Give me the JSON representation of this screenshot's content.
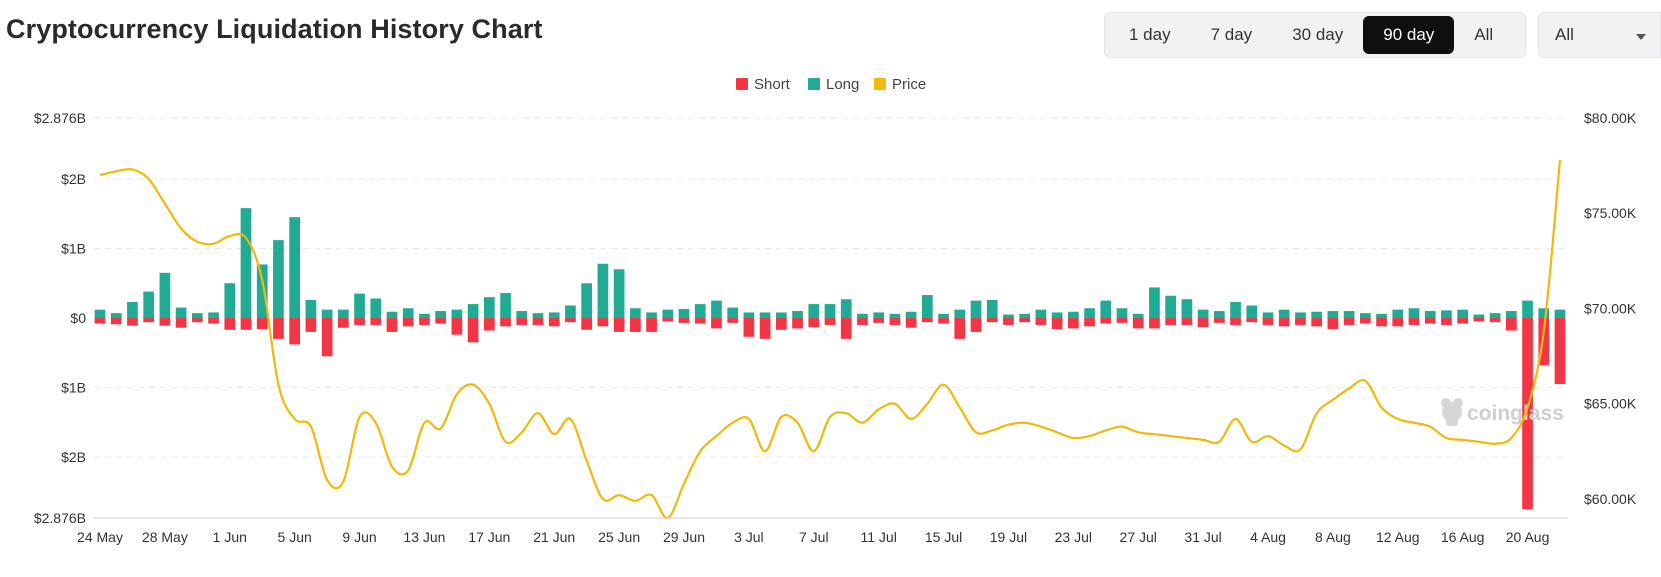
{
  "header": {
    "title": "Cryptocurrency Liquidation History Chart",
    "ranges": [
      "1 day",
      "7 day",
      "30 day",
      "90 day",
      "All"
    ],
    "active_range": "90 day",
    "filter_value": "All"
  },
  "watermark": "coinglass",
  "colors": {
    "short": "#f23645",
    "long": "#22ab94",
    "price": "#f0b90b",
    "grid": "#e9e9e9"
  },
  "chart_data": {
    "type": "bar",
    "legend": [
      "Short",
      "Long",
      "Price"
    ],
    "legend_position": "top-center",
    "grid": true,
    "y_left": {
      "range": [
        -2.876,
        2.876
      ],
      "unit": "B",
      "ticks": [
        {
          "value": 2.876,
          "label": "$2.876B"
        },
        {
          "value": 2,
          "label": "$2B"
        },
        {
          "value": 1,
          "label": "$1B"
        },
        {
          "value": 0,
          "label": "$0"
        },
        {
          "value": -1,
          "label": "$1B"
        },
        {
          "value": -2,
          "label": "$2B"
        },
        {
          "value": -2.876,
          "label": "$2.876B"
        }
      ]
    },
    "y_right": {
      "range": [
        59000,
        80000
      ],
      "ticks": [
        {
          "value": 80000,
          "label": "$80.00K"
        },
        {
          "value": 75000,
          "label": "$75.00K"
        },
        {
          "value": 70000,
          "label": "$70.00K"
        },
        {
          "value": 65000,
          "label": "$65.00K"
        },
        {
          "value": 60000,
          "label": "$60.00K"
        }
      ]
    },
    "x_tick_labels": [
      {
        "index": 0,
        "label": "24 May"
      },
      {
        "index": 4,
        "label": "28 May"
      },
      {
        "index": 8,
        "label": "1 Jun"
      },
      {
        "index": 12,
        "label": "5 Jun"
      },
      {
        "index": 16,
        "label": "9 Jun"
      },
      {
        "index": 20,
        "label": "13 Jun"
      },
      {
        "index": 24,
        "label": "17 Jun"
      },
      {
        "index": 28,
        "label": "21 Jun"
      },
      {
        "index": 32,
        "label": "25 Jun"
      },
      {
        "index": 36,
        "label": "29 Jun"
      },
      {
        "index": 40,
        "label": "3 Jul"
      },
      {
        "index": 44,
        "label": "7 Jul"
      },
      {
        "index": 48,
        "label": "11 Jul"
      },
      {
        "index": 52,
        "label": "15 Jul"
      },
      {
        "index": 56,
        "label": "19 Jul"
      },
      {
        "index": 60,
        "label": "23 Jul"
      },
      {
        "index": 64,
        "label": "27 Jul"
      },
      {
        "index": 68,
        "label": "31 Jul"
      },
      {
        "index": 72,
        "label": "4 Aug"
      },
      {
        "index": 76,
        "label": "8 Aug"
      },
      {
        "index": 80,
        "label": "12 Aug"
      },
      {
        "index": 84,
        "label": "16 Aug"
      },
      {
        "index": 88,
        "label": "20 Aug"
      }
    ],
    "series": [
      {
        "name": "Long",
        "unit": "B",
        "values": [
          0.12,
          0.07,
          0.23,
          0.38,
          0.65,
          0.15,
          0.07,
          0.08,
          0.5,
          1.58,
          0.77,
          1.12,
          1.45,
          0.26,
          0.12,
          0.12,
          0.35,
          0.28,
          0.09,
          0.14,
          0.06,
          0.1,
          0.12,
          0.2,
          0.3,
          0.36,
          0.1,
          0.07,
          0.08,
          0.18,
          0.5,
          0.78,
          0.7,
          0.14,
          0.08,
          0.12,
          0.13,
          0.2,
          0.25,
          0.15,
          0.08,
          0.08,
          0.08,
          0.1,
          0.2,
          0.2,
          0.27,
          0.06,
          0.08,
          0.06,
          0.09,
          0.33,
          0.06,
          0.12,
          0.25,
          0.26,
          0.05,
          0.06,
          0.12,
          0.08,
          0.09,
          0.14,
          0.25,
          0.14,
          0.06,
          0.44,
          0.32,
          0.27,
          0.12,
          0.1,
          0.23,
          0.18,
          0.08,
          0.12,
          0.08,
          0.09,
          0.1,
          0.1,
          0.07,
          0.06,
          0.12,
          0.14,
          0.1,
          0.11,
          0.12,
          0.05,
          0.07,
          0.1,
          0.25,
          0.14,
          0.12
        ]
      },
      {
        "name": "Short",
        "unit": "B",
        "values": [
          -0.08,
          -0.09,
          -0.11,
          -0.06,
          -0.11,
          -0.14,
          -0.06,
          -0.08,
          -0.17,
          -0.17,
          -0.16,
          -0.3,
          -0.38,
          -0.2,
          -0.55,
          -0.14,
          -0.1,
          -0.1,
          -0.2,
          -0.12,
          -0.1,
          -0.08,
          -0.24,
          -0.35,
          -0.18,
          -0.12,
          -0.1,
          -0.1,
          -0.12,
          -0.06,
          -0.17,
          -0.12,
          -0.2,
          -0.2,
          -0.2,
          -0.05,
          -0.07,
          -0.08,
          -0.15,
          -0.07,
          -0.27,
          -0.3,
          -0.17,
          -0.15,
          -0.13,
          -0.1,
          -0.3,
          -0.1,
          -0.07,
          -0.1,
          -0.14,
          -0.06,
          -0.08,
          -0.3,
          -0.2,
          -0.06,
          -0.1,
          -0.06,
          -0.1,
          -0.16,
          -0.15,
          -0.12,
          -0.08,
          -0.07,
          -0.15,
          -0.15,
          -0.1,
          -0.1,
          -0.13,
          -0.07,
          -0.1,
          -0.06,
          -0.1,
          -0.12,
          -0.1,
          -0.12,
          -0.16,
          -0.1,
          -0.08,
          -0.12,
          -0.12,
          -0.1,
          -0.08,
          -0.1,
          -0.08,
          -0.05,
          -0.06,
          -0.18,
          -2.75,
          -0.68,
          -0.95
        ]
      },
      {
        "name": "Price",
        "unit": "USD",
        "values": [
          77000,
          77200,
          77300,
          76800,
          75500,
          74200,
          73500,
          73400,
          73800,
          73700,
          71500,
          66000,
          64200,
          63800,
          61000,
          60900,
          64300,
          64000,
          61700,
          61500,
          64000,
          63700,
          65500,
          66000,
          65000,
          63000,
          63500,
          64500,
          63400,
          64200,
          62000,
          60000,
          60200,
          59900,
          60200,
          59000,
          60800,
          62500,
          63300,
          64000,
          64200,
          62500,
          64300,
          64000,
          62500,
          64300,
          64500,
          64000,
          64700,
          65000,
          64200,
          65000,
          66000,
          64800,
          63500,
          63600,
          63900,
          64000,
          63800,
          63500,
          63200,
          63300,
          63600,
          63800,
          63500,
          63400,
          63300,
          63200,
          63100,
          63000,
          64200,
          63000,
          63300,
          62800,
          62600,
          64500,
          65200,
          65800,
          66200,
          64800,
          64200,
          64000,
          63800,
          63200,
          63100,
          63000,
          62900,
          63200,
          64800,
          68800,
          77800
        ]
      }
    ]
  }
}
